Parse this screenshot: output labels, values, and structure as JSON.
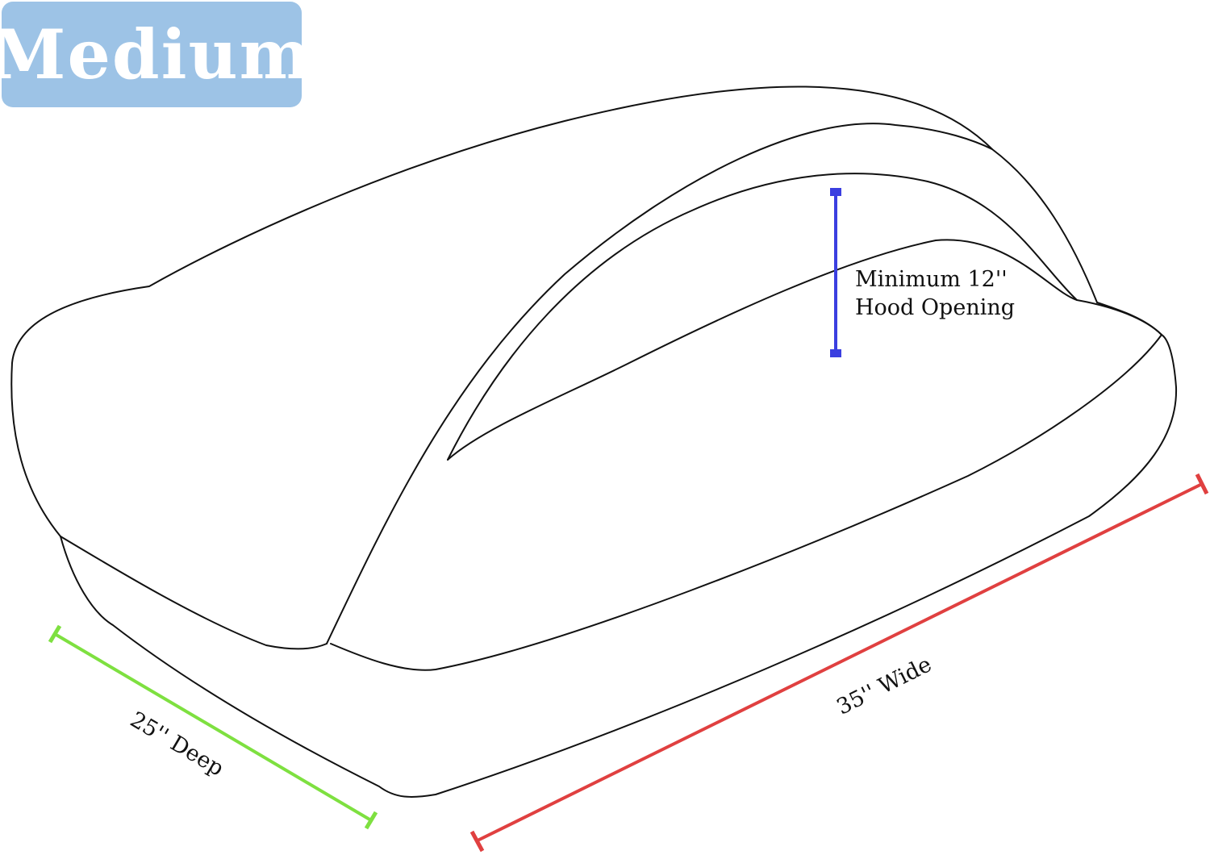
{
  "badge": {
    "label": "Medium",
    "color": "#9dc3e6"
  },
  "dimensions": {
    "hood_opening": {
      "line1": "Minimum 12''",
      "line2": "Hood Opening",
      "color": "#3b3fe0"
    },
    "width": {
      "label": "35'' Wide",
      "color": "#e04040"
    },
    "depth": {
      "label": "25'' Deep",
      "color": "#7ee040"
    }
  }
}
